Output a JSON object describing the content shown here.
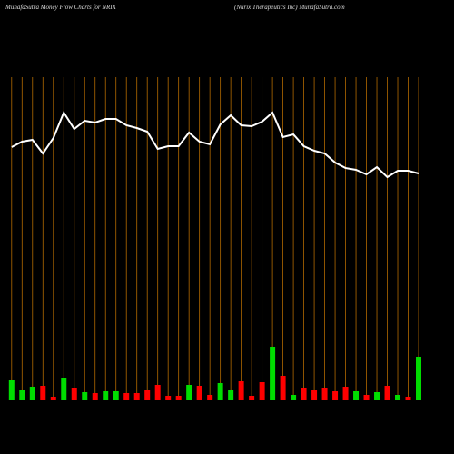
{
  "chart_data": {
    "type": "money-flow",
    "title": "MunafaSutra  Money Flow  Charts for NRIX",
    "subtitle": "(Nurix Therapeutics Inc) MunafaSutra.com",
    "categories": [
      null,
      null,
      null,
      null,
      null,
      null,
      null,
      null,
      null,
      null,
      null,
      null,
      null,
      null,
      null,
      null,
      null,
      null,
      null,
      null,
      null,
      null,
      null,
      null,
      null,
      null,
      null,
      null,
      null,
      null,
      null,
      null,
      null,
      null,
      null,
      null,
      null,
      null,
      null,
      null
    ],
    "series": [
      {
        "type": "line",
        "color": "#ffffff",
        "values": [
          338,
          344,
          346,
          331,
          348,
          376,
          358,
          367,
          365,
          369,
          369,
          362,
          359,
          355,
          336,
          339,
          339,
          354,
          344,
          341,
          363,
          373,
          362,
          361,
          366,
          376,
          349,
          352,
          339,
          334,
          331,
          321,
          315,
          313,
          308,
          316,
          305,
          312,
          312,
          309
        ]
      },
      {
        "type": "bar",
        "values": [
          21,
          10,
          14,
          15,
          3,
          24,
          13,
          8,
          7,
          9,
          9,
          7,
          7,
          10,
          16,
          4,
          4,
          16,
          15,
          5,
          18,
          11,
          20,
          4,
          19,
          58,
          26,
          5,
          13,
          10,
          13,
          9,
          14,
          9,
          5,
          8,
          15,
          5,
          3,
          47
        ],
        "colors": [
          "#00dd00",
          "#00dd00",
          "#00dd00",
          "#ff0000",
          "#ff0000",
          "#00dd00",
          "#ff0000",
          "#00dd00",
          "#ff0000",
          "#00dd00",
          "#00dd00",
          "#ff0000",
          "#ff0000",
          "#ff0000",
          "#ff0000",
          "#ff0000",
          "#ff0000",
          "#00dd00",
          "#ff0000",
          "#ff0000",
          "#00dd00",
          "#00dd00",
          "#ff0000",
          "#ff0000",
          "#ff0000",
          "#00dd00",
          "#ff0000",
          "#00dd00",
          "#ff0000",
          "#ff0000",
          "#ff0000",
          "#ff0000",
          "#ff0000",
          "#00dd00",
          "#ff0000",
          "#00dd00",
          "#ff0000",
          "#00dd00",
          "#ff0000",
          "#00dd00"
        ]
      }
    ],
    "grid_color": "#b36a00"
  }
}
